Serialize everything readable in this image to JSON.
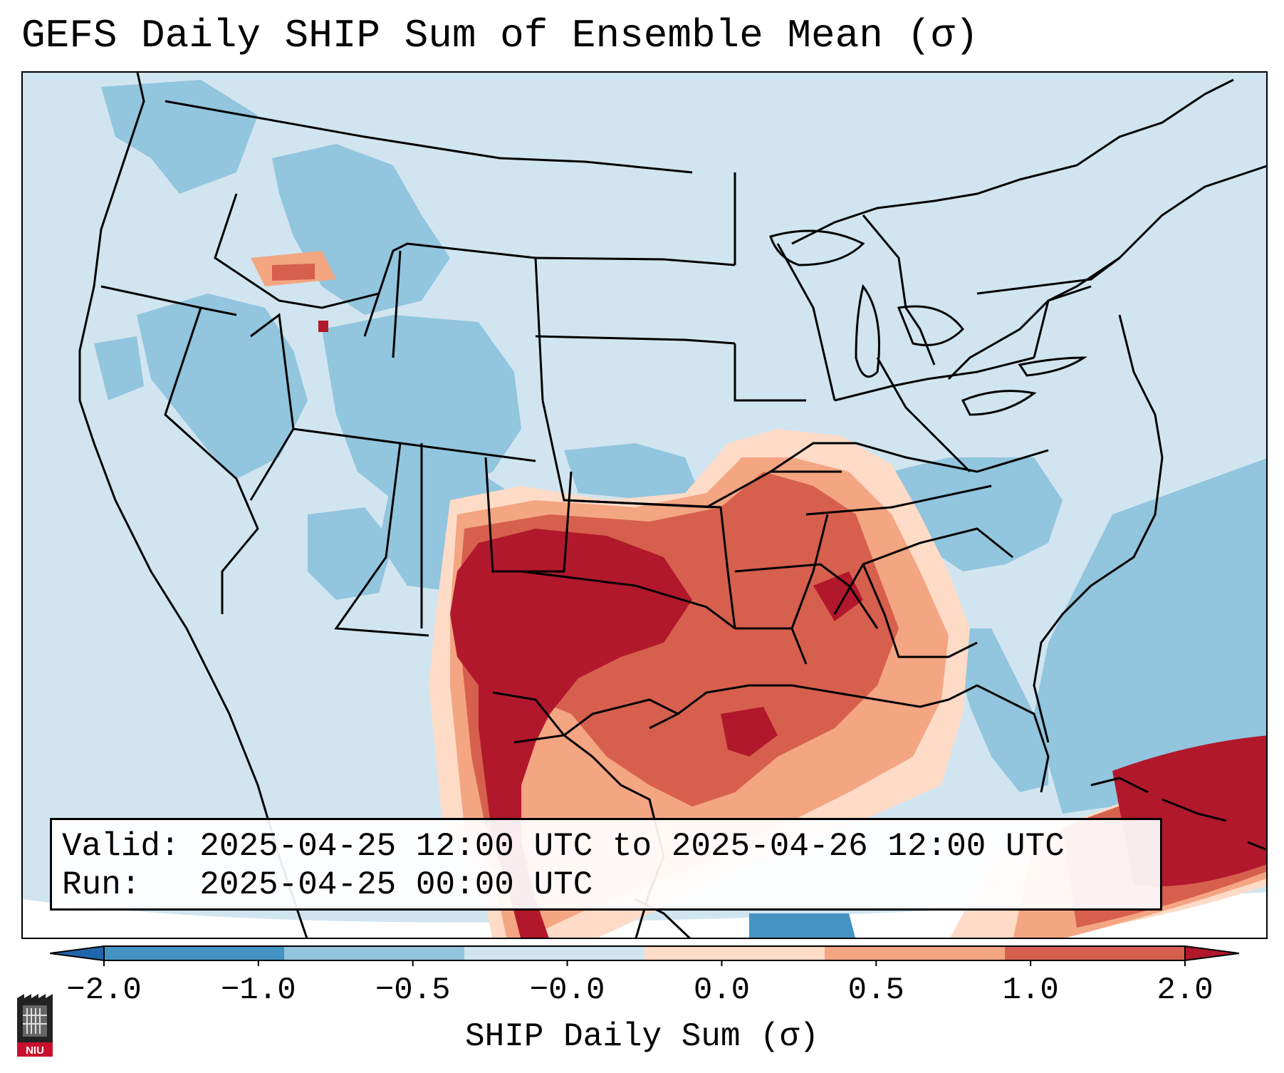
{
  "title": "GEFS Daily SHIP Sum of Ensemble Mean (σ)",
  "info": {
    "valid_line": "Valid: 2025-04-25 12:00 UTC to 2025-04-26 12:00 UTC",
    "run_line": "Run:   2025-04-25 00:00 UTC"
  },
  "colorbar": {
    "label": "SHIP Daily Sum (σ)",
    "ticks": [
      "−2.0",
      "−1.0",
      "−0.5",
      "−0.0",
      "0.0",
      "0.5",
      "1.0",
      "2.0"
    ],
    "colors": [
      "#2166ac",
      "#4393c3",
      "#92c5de",
      "#d1e5f0",
      "#fddbc7",
      "#f4a582",
      "#d6604d",
      "#b2182b"
    ],
    "extend": "both"
  },
  "logo": {
    "text": "NIU",
    "icon": "university-seal-icon"
  },
  "map": {
    "projection": "lambert-conformal",
    "region": "CONUS",
    "background_color": "#d1e5f0",
    "features": [
      "state-borders",
      "country-borders",
      "coastlines"
    ],
    "highlight": "Strongest positive anomaly over Texas, Oklahoma, the lower Mississippi Valley and the Caribbean"
  }
}
